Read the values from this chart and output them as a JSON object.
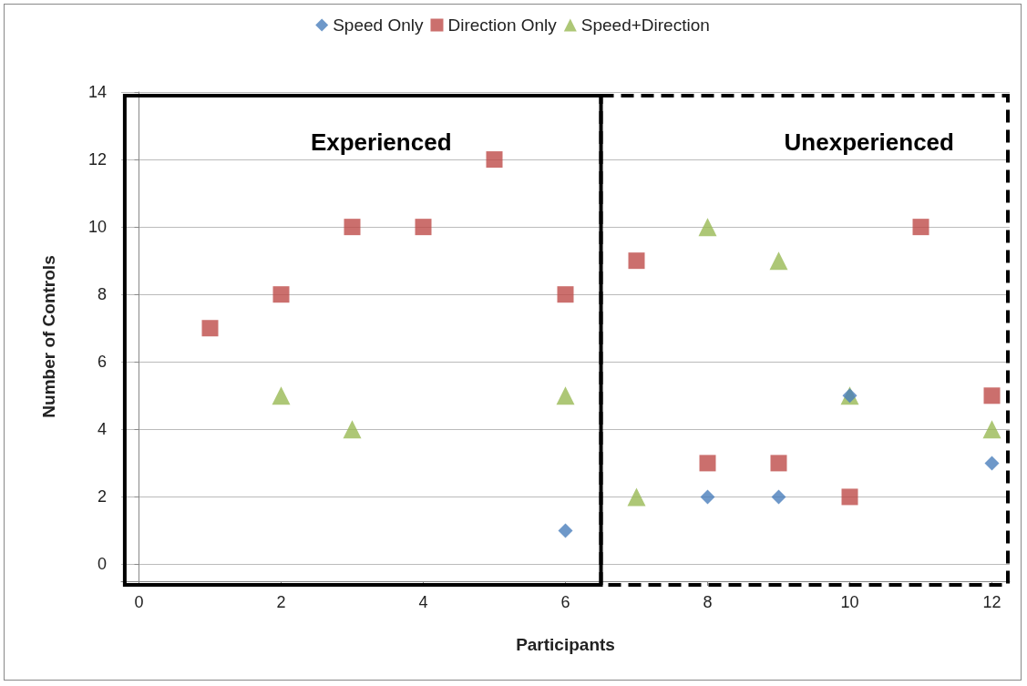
{
  "chart_data": {
    "type": "scatter",
    "xlabel": "Participants",
    "ylabel": "Number of Controls",
    "xlim": [
      -0.25,
      12.25
    ],
    "xticks": [
      0,
      2,
      4,
      6,
      8,
      10,
      12
    ],
    "ylim": [
      -0.5,
      14
    ],
    "yticks": [
      0,
      2,
      4,
      6,
      8,
      10,
      12,
      14
    ],
    "grid": "y",
    "legend": "top",
    "series": [
      {
        "name": "Speed Only",
        "color": "#4a7ebb",
        "marker": "diamond",
        "x": [
          6,
          8,
          9,
          10,
          12
        ],
        "values": [
          1,
          2,
          2,
          5,
          3
        ]
      },
      {
        "name": "Direction Only",
        "color": "#be4b48",
        "marker": "square",
        "x": [
          1,
          2,
          3,
          4,
          5,
          6,
          7,
          8,
          9,
          10,
          11,
          12
        ],
        "values": [
          7,
          8,
          10,
          10,
          12,
          8,
          9,
          3,
          3,
          2,
          10,
          5
        ]
      },
      {
        "name": "Speed+Direction",
        "color": "#98b954",
        "marker": "triangle",
        "x": [
          2,
          3,
          6,
          7,
          8,
          9,
          10,
          12
        ],
        "values": [
          5,
          4,
          5,
          2,
          10,
          9,
          5,
          4
        ]
      }
    ],
    "annotations": [
      "Experienced",
      "Unexperienced"
    ]
  }
}
